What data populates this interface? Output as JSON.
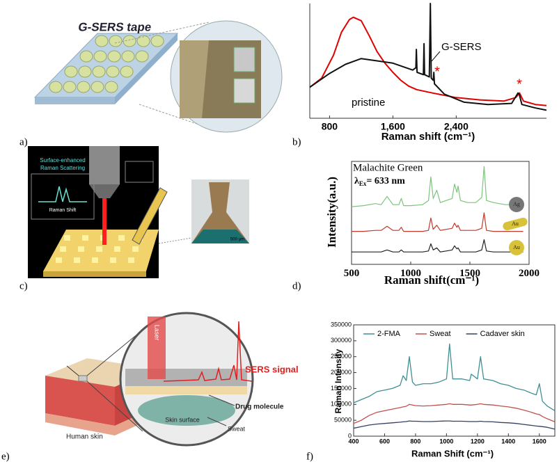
{
  "panel_labels": [
    "a)",
    "b)",
    "c)",
    "d)",
    "e)",
    "f)"
  ],
  "illustrations": {
    "a": {
      "title": "G-SERS tape"
    },
    "c": {
      "inset_title": [
        "Surface-enhanced",
        "Raman Scattering"
      ],
      "inset_axis": "Raman Shift",
      "scale_bar": "500 μm"
    },
    "e": {
      "laser": "Laser",
      "signal": "SERS signal",
      "drug": "Drug molecule",
      "skin_surface": "Skin surface",
      "sweat": "Sweat",
      "human_skin": "Human skin"
    }
  },
  "chart_data": [
    {
      "type": "line",
      "x_label": "Raman shift (cm⁻¹)",
      "xlim": [
        550,
        3540
      ],
      "ylim": [
        0,
        100
      ],
      "xticks": [
        {
          "value": 800,
          "label": "800"
        },
        {
          "value": 1600,
          "label": "1,600"
        },
        {
          "value": 2400,
          "label": "2,400"
        }
      ],
      "series": [
        {
          "name": "pristine",
          "color": "#e00000",
          "x": [
            550,
            700,
            850,
            950,
            1050,
            1100,
            1200,
            1300,
            1400,
            1500,
            1600,
            1700,
            1800,
            1900,
            2100,
            2400,
            2700,
            3000,
            3150,
            3200,
            3250,
            3400,
            3540
          ],
          "values": [
            27,
            35,
            55,
            75,
            86,
            88,
            85,
            72,
            58,
            48,
            40,
            33,
            28,
            25,
            22,
            18,
            16,
            15,
            18,
            22,
            15,
            12,
            11
          ]
        },
        {
          "name": "G-SERS",
          "color": "#111111",
          "x": [
            550,
            800,
            1000,
            1200,
            1400,
            1600,
            1850,
            1890,
            1896,
            1905,
            1985,
            1993,
            2000,
            2060,
            2073,
            2085,
            2110,
            2117,
            2125,
            2250,
            2500,
            2800,
            3100,
            3180,
            3195,
            3230,
            3400,
            3540
          ],
          "values": [
            27,
            39,
            47,
            52,
            50,
            48,
            42,
            44,
            60,
            40,
            38,
            65,
            38,
            36,
            100,
            35,
            33,
            40,
            30,
            21,
            14,
            12,
            13,
            22,
            21,
            12,
            9,
            7
          ]
        }
      ],
      "annotations": [
        "*",
        "*"
      ]
    },
    {
      "type": "line",
      "title": "Malachite Green",
      "excitation": [
        "λ",
        "Ex",
        "= 633 nm"
      ],
      "x_label": "Raman shift(cm⁻¹)",
      "y_label": "Intensity(a.u.)",
      "xlim": [
        500,
        2000
      ],
      "ylim": [
        0,
        100
      ],
      "xticks": [
        500,
        1000,
        1500,
        2000
      ],
      "x": [
        500,
        600,
        700,
        750,
        800,
        850,
        900,
        920,
        940,
        1000,
        1100,
        1150,
        1170,
        1190,
        1220,
        1250,
        1300,
        1350,
        1370,
        1390,
        1400,
        1420,
        1480,
        1550,
        1600,
        1620,
        1640,
        1700,
        1800,
        1900,
        1950
      ],
      "series": [
        {
          "name": "Ag",
          "color": "#7cc47c",
          "values": [
            56,
            57,
            59,
            58,
            66,
            58,
            58,
            64,
            57,
            57,
            58,
            62,
            85,
            64,
            72,
            60,
            62,
            64,
            78,
            70,
            76,
            62,
            60,
            60,
            65,
            95,
            62,
            60,
            58,
            58,
            57
          ]
        },
        {
          "name": "Au",
          "color": "#c0392b",
          "values": [
            32,
            32,
            33,
            33,
            37,
            33,
            33,
            36,
            32,
            32,
            32,
            33,
            45,
            34,
            38,
            33,
            34,
            35,
            40,
            36,
            38,
            33,
            33,
            33,
            35,
            50,
            33,
            32,
            32,
            32,
            32
          ]
        },
        {
          "name": "Au",
          "color": "#222222",
          "values": [
            12,
            12,
            12,
            12,
            14,
            12,
            12,
            14,
            12,
            12,
            12,
            13,
            20,
            14,
            16,
            12,
            13,
            14,
            18,
            15,
            16,
            12,
            12,
            12,
            14,
            24,
            13,
            12,
            12,
            12,
            12
          ]
        }
      ]
    },
    {
      "type": "line",
      "x_label": "Raman Shift (cm⁻¹)",
      "y_label": "Raman Intensity",
      "legend": "top",
      "xlim": [
        400,
        1700
      ],
      "ylim": [
        0,
        350000
      ],
      "xticks": [
        400,
        600,
        800,
        1000,
        1200,
        1400,
        1600
      ],
      "yticks": [
        0,
        50000,
        100000,
        150000,
        200000,
        250000,
        300000,
        350000
      ],
      "x": [
        400,
        450,
        500,
        550,
        600,
        650,
        700,
        720,
        740,
        760,
        780,
        800,
        850,
        900,
        950,
        1000,
        1020,
        1040,
        1100,
        1150,
        1160,
        1200,
        1220,
        1240,
        1300,
        1350,
        1400,
        1450,
        1500,
        1550,
        1580,
        1600,
        1620,
        1650,
        1700
      ],
      "series": [
        {
          "name": "2-FMA",
          "color": "#3f8f93",
          "values": [
            105000,
            115000,
            125000,
            140000,
            145000,
            150000,
            160000,
            190000,
            175000,
            250000,
            170000,
            160000,
            165000,
            165000,
            170000,
            180000,
            290000,
            180000,
            180000,
            175000,
            195000,
            180000,
            250000,
            180000,
            175000,
            165000,
            160000,
            150000,
            145000,
            135000,
            130000,
            165000,
            110000,
            95000,
            80000
          ]
        },
        {
          "name": "Sweat",
          "color": "#c0504d",
          "values": [
            40000,
            50000,
            65000,
            75000,
            80000,
            85000,
            90000,
            92000,
            94000,
            100000,
            98000,
            96000,
            95000,
            96000,
            98000,
            100000,
            102000,
            100000,
            100000,
            98000,
            98000,
            100000,
            102000,
            100000,
            98000,
            95000,
            92000,
            88000,
            82000,
            75000,
            70000,
            68000,
            62000,
            55000,
            45000
          ]
        },
        {
          "name": "Cadaver skin",
          "color": "#33405e",
          "values": [
            25000,
            30000,
            35000,
            38000,
            40000,
            42000,
            44000,
            45000,
            46000,
            48000,
            47000,
            47000,
            46000,
            46000,
            47000,
            48000,
            48000,
            47000,
            47000,
            46000,
            46000,
            46000,
            47000,
            46000,
            45000,
            43000,
            42000,
            40000,
            37000,
            34000,
            32000,
            31000,
            30000,
            28000,
            22000
          ]
        }
      ]
    }
  ]
}
